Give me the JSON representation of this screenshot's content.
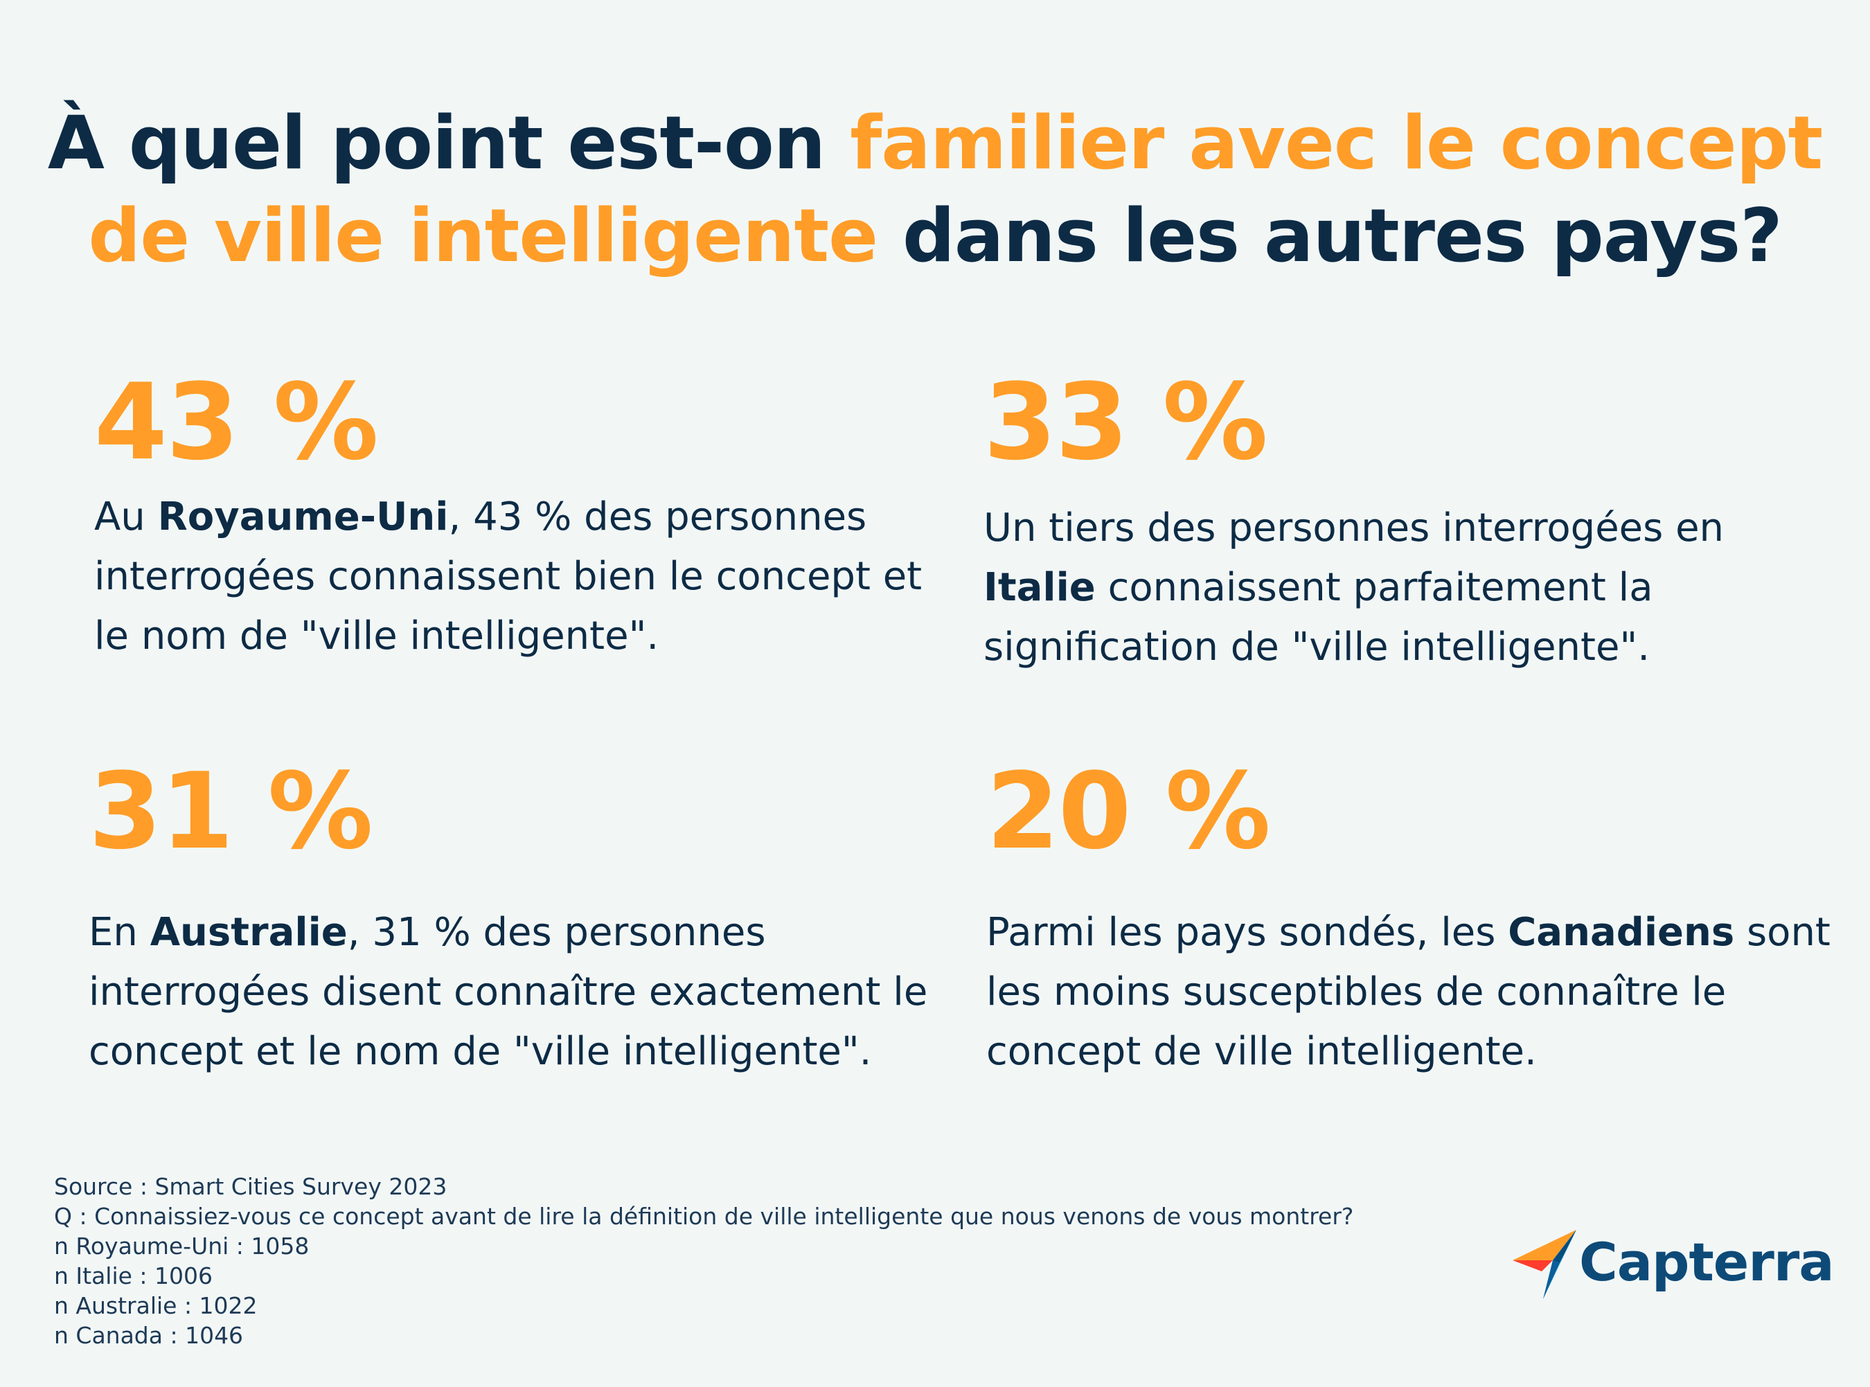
{
  "title": {
    "part1": "À quel point est-on ",
    "accent": "familier avec le concept de ville intelligente",
    "part2": " dans les autres pays?"
  },
  "stats": [
    {
      "percent": "43 %",
      "pre": "Au ",
      "bold": "Royaume-Uni",
      "post": ", 43 % des personnes interrogées connaissent bien le concept et le nom de \"ville intelligente\"."
    },
    {
      "percent": "33 %",
      "pre": "Un tiers des personnes interrogées en ",
      "bold": "Italie",
      "post": " connaissent parfaitement la signification de \"ville intelligente\"."
    },
    {
      "percent": "31 %",
      "pre": "En ",
      "bold": "Australie",
      "post": ", 31 % des personnes interrogées disent connaître exactement le concept et le nom de \"ville intelligente\"."
    },
    {
      "percent": "20 %",
      "pre": "Parmi les pays sondés, les ",
      "bold": "Canadiens",
      "post": " sont les moins susceptibles de connaître le concept de ville intelligente."
    }
  ],
  "source": {
    "lines": [
      "Source : Smart Cities Survey 2023",
      "Q : Connaissiez-vous ce concept avant de lire la définition de ville intelligente que nous venons de vous montrer?",
      "n Royaume-Uni : 1058",
      "n Italie : 1006",
      "n Australie : 1022",
      "n Canada : 1046"
    ]
  },
  "logo": {
    "name": "Capterra",
    "icon": "capterra-arrow-icon",
    "colors": {
      "orange": "#ff9d28",
      "red": "#ff3d2e",
      "blue": "#044d80",
      "light_blue": "#68c5ed"
    }
  },
  "colors": {
    "accent": "#ff9d28",
    "text": "#0d2b45",
    "background": "#f2f7f6"
  }
}
